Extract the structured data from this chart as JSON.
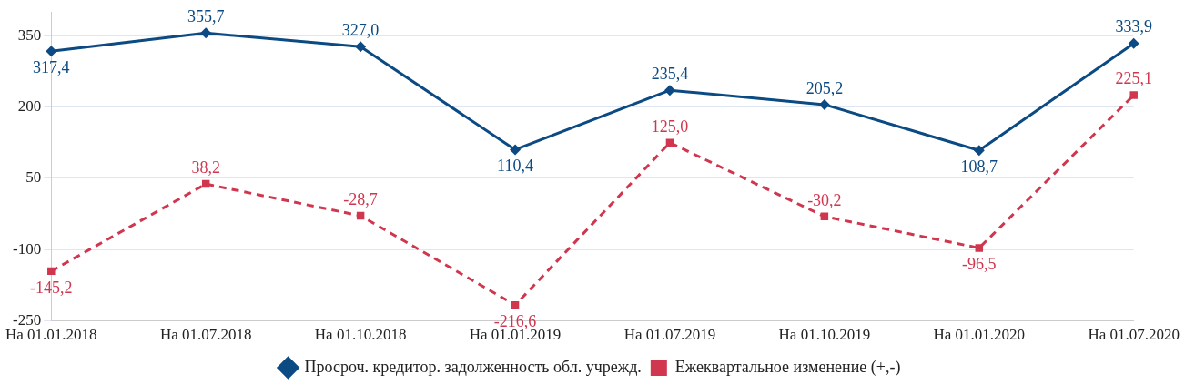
{
  "chart_data": {
    "type": "line",
    "categories": [
      "На 01.01.2018",
      "На 01.07.2018",
      "На 01.10.2018",
      "На 01.01.2019",
      "На 01.07.2019",
      "На 01.10.2019",
      "На 01.01.2020",
      "На 01.07.2020"
    ],
    "series": [
      {
        "name": "Просроч. кредитор. задолженность обл. учрежд.",
        "color": "#0b4a82",
        "marker": "diamond",
        "line_style": "solid",
        "values": [
          317.4,
          355.7,
          327.0,
          110.4,
          235.4,
          205.2,
          108.7,
          333.9
        ],
        "value_labels": [
          "317,4",
          "355,7",
          "327,0",
          "110,4",
          "235,4",
          "205,2",
          "108,7",
          "333,9"
        ]
      },
      {
        "name": "Ежеквартальное изменение (+,-)",
        "color": "#d0364e",
        "marker": "square",
        "line_style": "dashed",
        "values": [
          -145.2,
          38.2,
          -28.7,
          -216.6,
          125.0,
          -30.2,
          -96.5,
          225.1
        ],
        "value_labels": [
          "-145,2",
          "38,2",
          "-28,7",
          "-216,6",
          "125,0",
          "-30,2",
          "-96,5",
          "225,1"
        ]
      }
    ],
    "ylim": [
      -250,
      400
    ],
    "yticks": [
      -250,
      -100,
      50,
      200,
      350
    ],
    "grid": "y",
    "legend": "bottom"
  }
}
